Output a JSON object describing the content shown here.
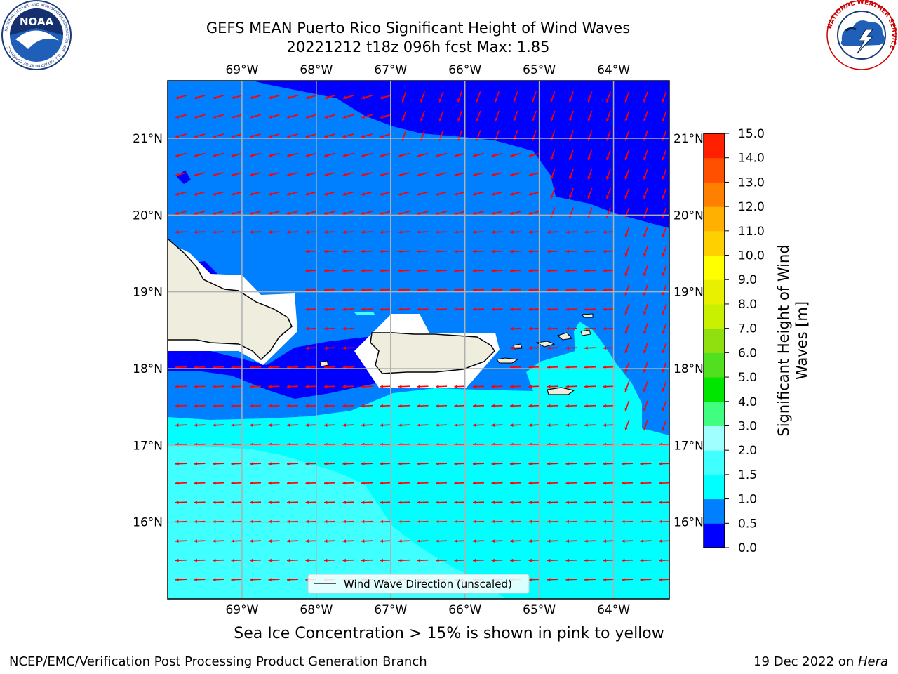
{
  "header": {
    "title_line1": "GEFS MEAN Puerto Rico Significant Height of Wind Waves",
    "title_line2": "20221212 t18z 096h fcst   Max: 1.85"
  },
  "logos": {
    "noaa_text": "NOAA",
    "noaa_ring_text": "NATIONAL OCEANIC AND ATMOSPHERIC ADMINISTRATION · U.S. DEPARTMENT OF COMMERCE",
    "nws_ring_text": "NATIONAL WEATHER SERVICE"
  },
  "map": {
    "lon_range": [
      -70.0,
      -63.25
    ],
    "lat_range": [
      15.0,
      21.75
    ],
    "lon_ticks": [
      "69°W",
      "68°W",
      "67°W",
      "66°W",
      "65°W",
      "64°W"
    ],
    "lat_ticks": [
      "21°N",
      "20°N",
      "19°N",
      "18°N",
      "17°N",
      "16°N"
    ],
    "gridlines": true,
    "arrow_color": "#ff0000",
    "wind_direction": "east-to-west"
  },
  "legend": {
    "label": "Wind Wave Direction (unscaled)",
    "placement": "bottom-center"
  },
  "colorbar": {
    "label_line1": "Significant Height of Wind",
    "label_line2": "Waves [m]",
    "levels": [
      "0.0",
      "0.5",
      "1.0",
      "1.5",
      "2.0",
      "3.0",
      "4.0",
      "5.0",
      "6.0",
      "7.0",
      "8.0",
      "9.0",
      "10.0",
      "11.0",
      "12.0",
      "13.0",
      "14.0",
      "15.0"
    ],
    "colors": [
      "#0000ff",
      "#0080ff",
      "#00ffff",
      "#40ffff",
      "#a0ffff",
      "#40ff80",
      "#00e600",
      "#50e020",
      "#90e010",
      "#c8f000",
      "#e8f000",
      "#ffff00",
      "#ffd000",
      "#ffb000",
      "#ff8000",
      "#ff5000",
      "#ff2000"
    ]
  },
  "notes": {
    "sea_ice": "Sea Ice Concentration > 15% is shown in pink to yellow"
  },
  "footer": {
    "left": "NCEP/EMC/Verification Post Processing Product Generation Branch",
    "right_prefix": "19 Dec 2022 on ",
    "right_machine": "Hera"
  },
  "colors": {
    "land": "#efedde",
    "band_lt_0_5": "#0000ff",
    "band_0_5_1_0": "#0080ff",
    "band_1_0_1_5": "#00ffff",
    "band_1_5_2_0": "#40ffff"
  }
}
